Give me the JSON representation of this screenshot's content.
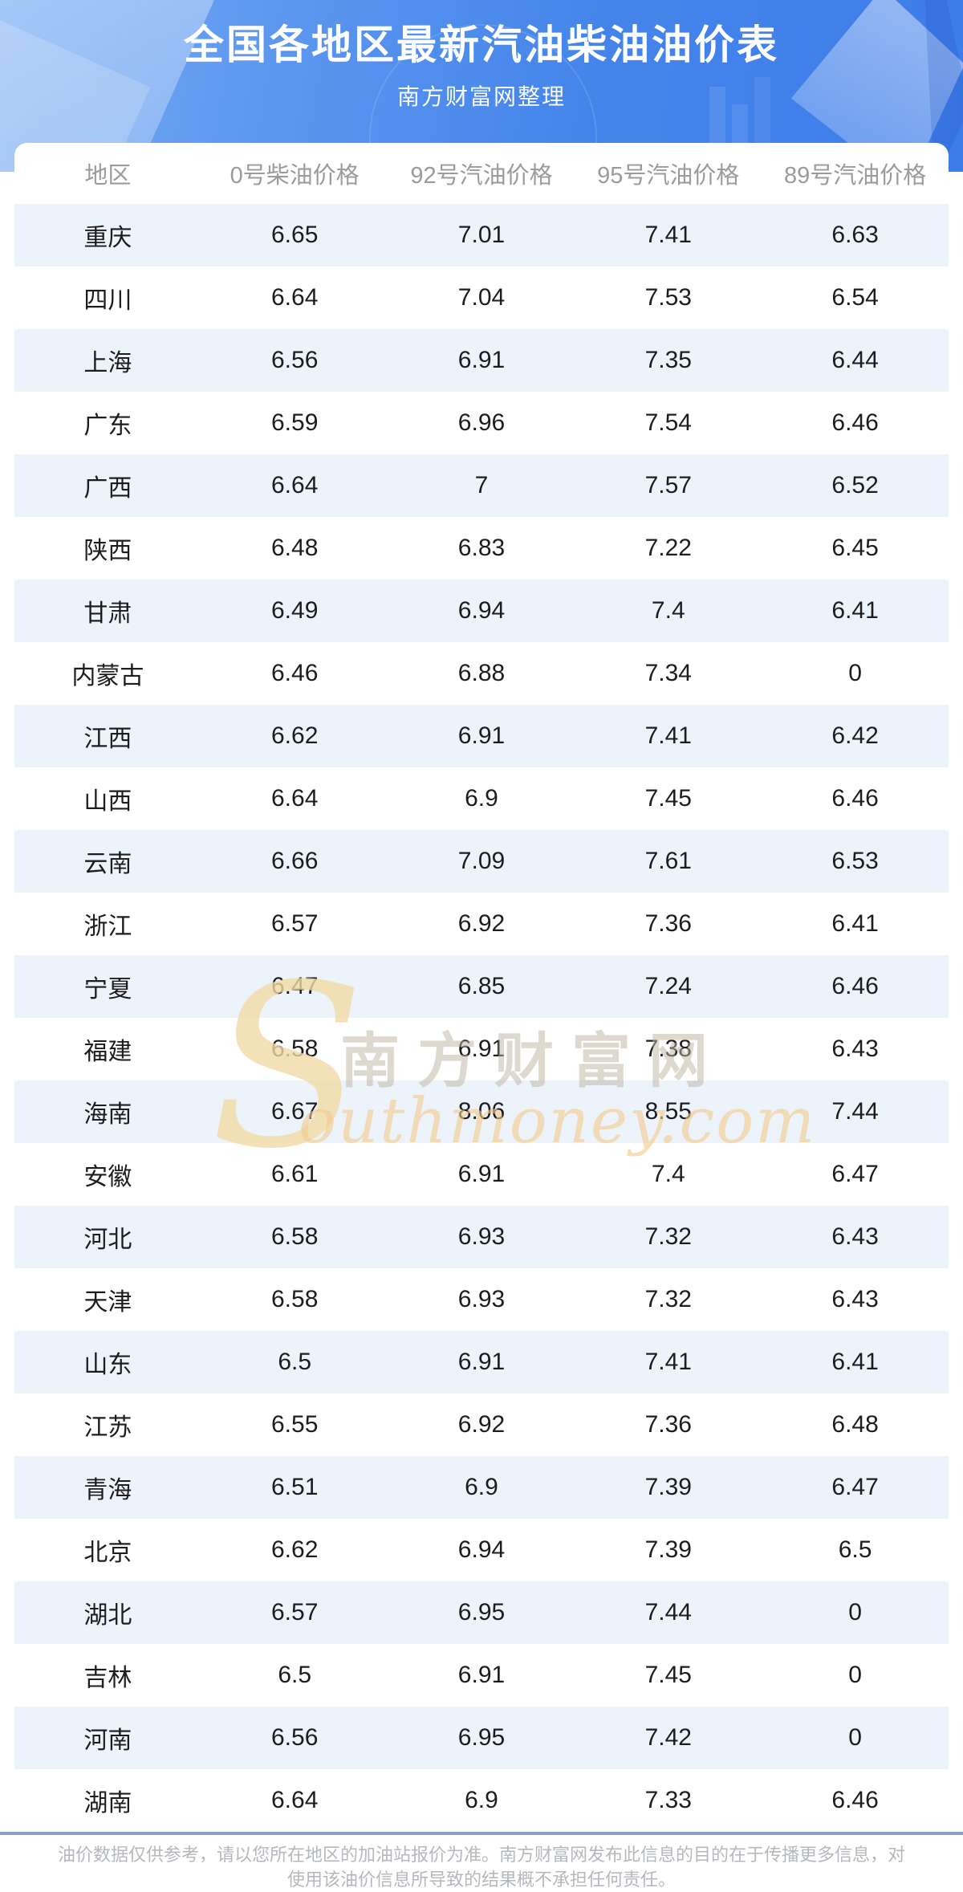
{
  "banner": {
    "title": "全国各地区最新汽油柴油油价表",
    "subtitle": "南方财富网整理"
  },
  "watermark": {
    "initial": "S",
    "cn": "南方财富网",
    "en": "outhmoney.com"
  },
  "footer": {
    "line1": "油价数据仅供参考，请以您所在地区的加油站报价为准。南方财富网发布此信息的目的在于传播更多信息，对",
    "line2": "使用该油价信息所导致的结果概不承担任何责任。"
  },
  "colors": {
    "banner_blue": "#4484ea",
    "row_alt_blue": "#ecf3fb",
    "divider_blue_gray": "#87a3c3",
    "header_text_gray": "#9b9b9b",
    "watermark_tan": "#f3daa5",
    "watermark_orange": "#f4c98a"
  },
  "chart_data": {
    "type": "table",
    "title": "全国各地区最新汽油柴油油价表",
    "columns": [
      "地区",
      "0号柴油价格",
      "92号汽油价格",
      "95号汽油价格",
      "89号汽油价格"
    ],
    "rows": [
      {
        "region": "重庆",
        "values": [
          6.65,
          7.01,
          7.41,
          6.63
        ]
      },
      {
        "region": "四川",
        "values": [
          6.64,
          7.04,
          7.53,
          6.54
        ]
      },
      {
        "region": "上海",
        "values": [
          6.56,
          6.91,
          7.35,
          6.44
        ]
      },
      {
        "region": "广东",
        "values": [
          6.59,
          6.96,
          7.54,
          6.46
        ]
      },
      {
        "region": "广西",
        "values": [
          6.64,
          7,
          7.57,
          6.52
        ]
      },
      {
        "region": "陕西",
        "values": [
          6.48,
          6.83,
          7.22,
          6.45
        ]
      },
      {
        "region": "甘肃",
        "values": [
          6.49,
          6.94,
          7.4,
          6.41
        ]
      },
      {
        "region": "内蒙古",
        "values": [
          6.46,
          6.88,
          7.34,
          0
        ]
      },
      {
        "region": "江西",
        "values": [
          6.62,
          6.91,
          7.41,
          6.42
        ]
      },
      {
        "region": "山西",
        "values": [
          6.64,
          6.9,
          7.45,
          6.46
        ]
      },
      {
        "region": "云南",
        "values": [
          6.66,
          7.09,
          7.61,
          6.53
        ]
      },
      {
        "region": "浙江",
        "values": [
          6.57,
          6.92,
          7.36,
          6.41
        ]
      },
      {
        "region": "宁夏",
        "values": [
          6.47,
          6.85,
          7.24,
          6.46
        ]
      },
      {
        "region": "福建",
        "values": [
          6.58,
          6.91,
          7.38,
          6.43
        ]
      },
      {
        "region": "海南",
        "values": [
          6.67,
          8.06,
          8.55,
          7.44
        ]
      },
      {
        "region": "安徽",
        "values": [
          6.61,
          6.91,
          7.4,
          6.47
        ]
      },
      {
        "region": "河北",
        "values": [
          6.58,
          6.93,
          7.32,
          6.43
        ]
      },
      {
        "region": "天津",
        "values": [
          6.58,
          6.93,
          7.32,
          6.43
        ]
      },
      {
        "region": "山东",
        "values": [
          6.5,
          6.91,
          7.41,
          6.41
        ]
      },
      {
        "region": "江苏",
        "values": [
          6.55,
          6.92,
          7.36,
          6.48
        ]
      },
      {
        "region": "青海",
        "values": [
          6.51,
          6.9,
          7.39,
          6.47
        ]
      },
      {
        "region": "北京",
        "values": [
          6.62,
          6.94,
          7.39,
          6.5
        ]
      },
      {
        "region": "湖北",
        "values": [
          6.57,
          6.95,
          7.44,
          0
        ]
      },
      {
        "region": "吉林",
        "values": [
          6.5,
          6.91,
          7.45,
          0
        ]
      },
      {
        "region": "河南",
        "values": [
          6.56,
          6.95,
          7.42,
          0
        ]
      },
      {
        "region": "湖南",
        "values": [
          6.64,
          6.9,
          7.33,
          6.46
        ]
      }
    ]
  }
}
